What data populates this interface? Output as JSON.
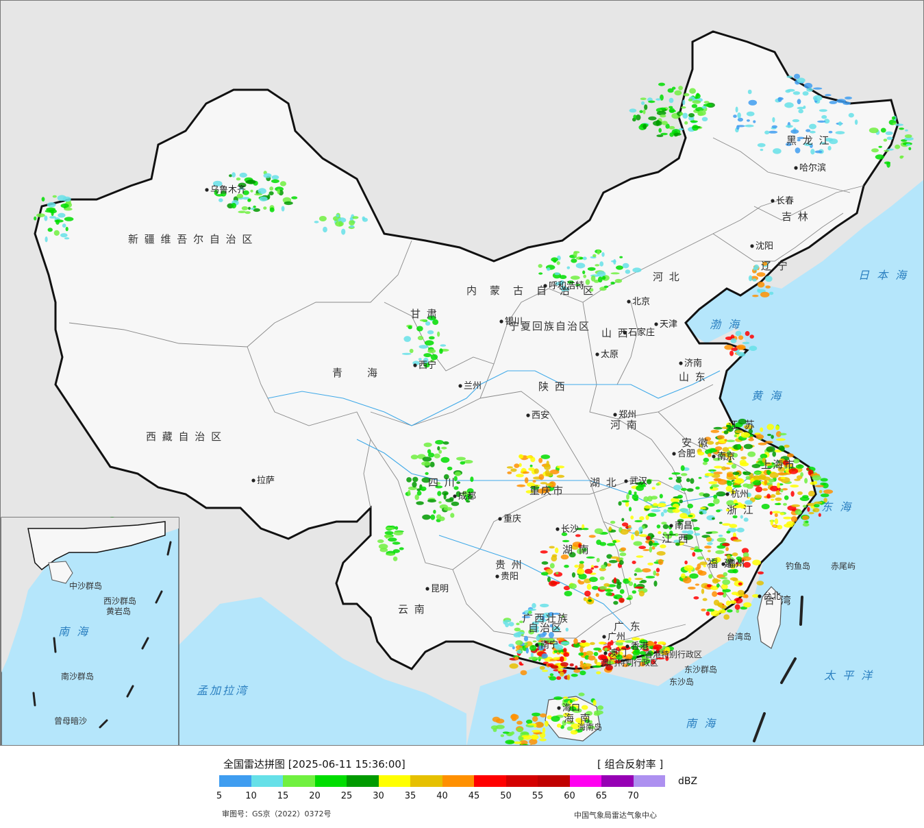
{
  "map": {
    "provinces": [
      {
        "name": "新 疆 维 吾 尔 自 治 区"
      },
      {
        "name": "西 藏 自 治 区"
      },
      {
        "name": "青　　海"
      },
      {
        "name": "四 川"
      },
      {
        "name": "云 南"
      },
      {
        "name": "甘 肃"
      },
      {
        "name": "内　蒙　古　自　治　区"
      },
      {
        "name": "黑 龙 江"
      },
      {
        "name": "吉 林"
      },
      {
        "name": "辽 宁"
      },
      {
        "name": "河 北"
      },
      {
        "name": "山 西"
      },
      {
        "name": "山 东"
      },
      {
        "name": "河 南"
      },
      {
        "name": "陕 西"
      },
      {
        "name": "湖 北"
      },
      {
        "name": "湖 南"
      },
      {
        "name": "江 西"
      },
      {
        "name": "安 徽"
      },
      {
        "name": "江 苏"
      },
      {
        "name": "浙 江"
      },
      {
        "name": "福 建"
      },
      {
        "name": "贵 州"
      },
      {
        "name": "广 东"
      },
      {
        "name": "广西壮族"
      },
      {
        "name": "自治区"
      },
      {
        "name": "海 南"
      },
      {
        "name": "台 湾"
      },
      {
        "name": "重庆市"
      },
      {
        "name": "上海市"
      },
      {
        "name": "宁夏回族自治区"
      }
    ],
    "cities": [
      {
        "name": "乌鲁木齐"
      },
      {
        "name": "拉萨"
      },
      {
        "name": "西宁"
      },
      {
        "name": "兰州"
      },
      {
        "name": "成都"
      },
      {
        "name": "重庆"
      },
      {
        "name": "昆明"
      },
      {
        "name": "贵阳"
      },
      {
        "name": "南宁"
      },
      {
        "name": "广州"
      },
      {
        "name": "香港"
      },
      {
        "name": "澳门"
      },
      {
        "name": "海口"
      },
      {
        "name": "银川"
      },
      {
        "name": "呼和浩特"
      },
      {
        "name": "西安"
      },
      {
        "name": "太原"
      },
      {
        "name": "石家庄"
      },
      {
        "name": "北京"
      },
      {
        "name": "天津"
      },
      {
        "name": "济南"
      },
      {
        "name": "郑州"
      },
      {
        "name": "武汉"
      },
      {
        "name": "合肥"
      },
      {
        "name": "南京"
      },
      {
        "name": "杭州"
      },
      {
        "name": "南昌"
      },
      {
        "name": "长沙"
      },
      {
        "name": "福州"
      },
      {
        "name": "台北"
      },
      {
        "name": "沈阳"
      },
      {
        "name": "长春"
      },
      {
        "name": "哈尔滨"
      }
    ],
    "seas": [
      {
        "name": "渤 海"
      },
      {
        "name": "黄 海"
      },
      {
        "name": "东 海"
      },
      {
        "name": "日 本 海"
      },
      {
        "name": "太 平 洋"
      },
      {
        "name": "南 海"
      },
      {
        "name": "孟加拉湾"
      },
      {
        "name": "南 海"
      }
    ],
    "islands": [
      {
        "name": "钓鱼岛"
      },
      {
        "name": "赤尾屿"
      },
      {
        "name": "台湾岛"
      },
      {
        "name": "东沙群岛"
      },
      {
        "name": "东沙岛"
      },
      {
        "name": "香港特别行政区"
      },
      {
        "name": "澳门特别行政区"
      },
      {
        "name": "海南岛"
      },
      {
        "name": "中沙群岛"
      },
      {
        "name": "西沙群岛"
      },
      {
        "name": "南沙群岛"
      },
      {
        "name": "曾母暗沙"
      },
      {
        "name": "黄岩岛"
      }
    ]
  },
  "legend": {
    "title": "全国雷达拼图 [2025-06-11 15:36:00]",
    "product": "[ 组合反射率 ]",
    "unit": "dBZ",
    "colors": [
      "#3f9df0",
      "#66e0e8",
      "#70f040",
      "#00dd00",
      "#009a00",
      "#ffff00",
      "#e6c000",
      "#ff9000",
      "#ff0000",
      "#d40000",
      "#c00000",
      "#ff00f0",
      "#9600b4",
      "#ad90f0"
    ],
    "ticks": [
      "5",
      "10",
      "15",
      "20",
      "25",
      "30",
      "35",
      "40",
      "45",
      "50",
      "55",
      "60",
      "65",
      "70"
    ],
    "approval": "审图号：GS京（2022）0372号",
    "source": "中国气象局雷达气象中心"
  },
  "colors": {
    "ocean": "#b5e6fb",
    "land_outside": "#e6e6e6",
    "china_land": "#f6f6f6",
    "border": "#111111"
  }
}
